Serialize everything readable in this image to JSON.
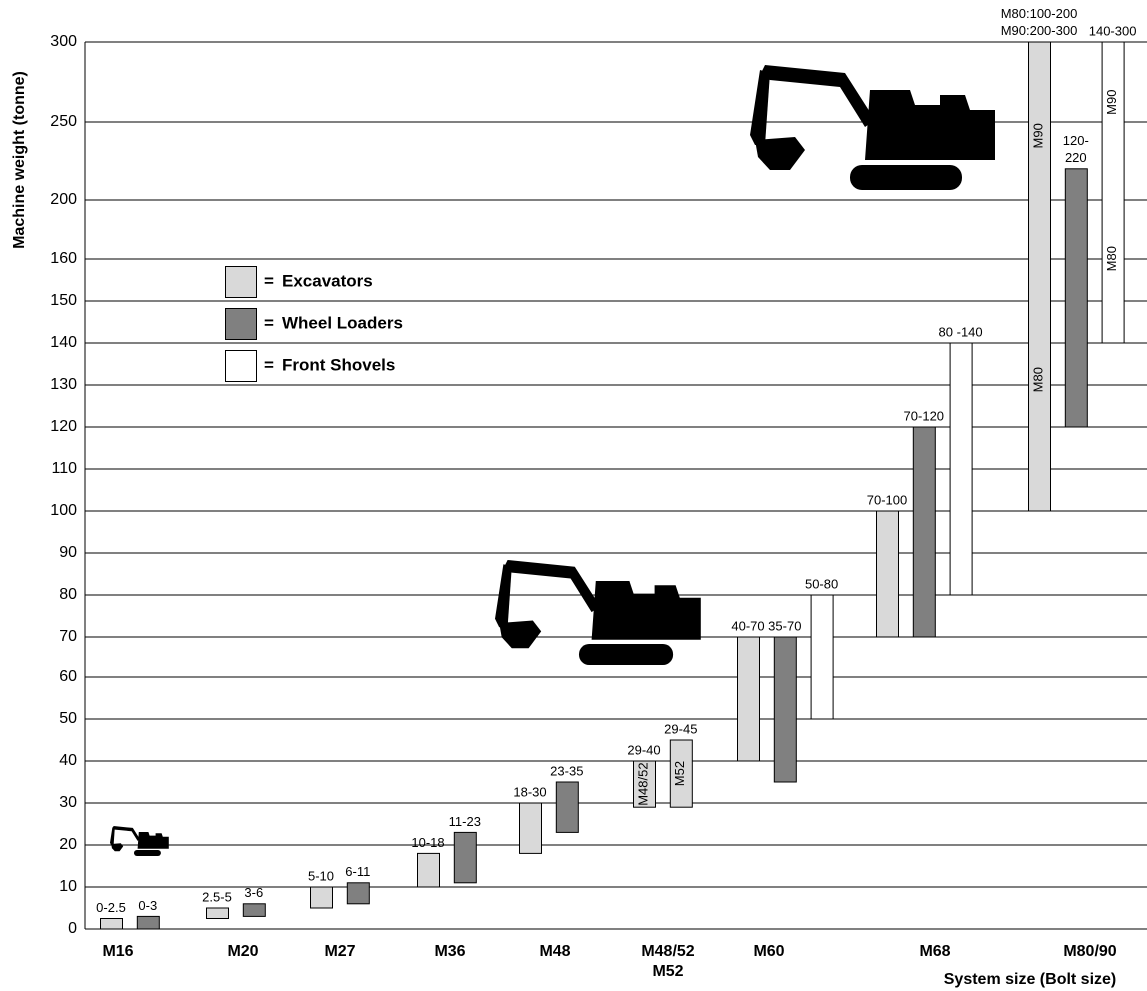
{
  "chart_data": {
    "type": "floating_bar",
    "y_label": "Machine weight (tonne)",
    "x_label": "System size (Bolt size)",
    "ylim": [
      0,
      300
    ],
    "yticks": [
      0,
      10,
      20,
      30,
      40,
      50,
      60,
      70,
      80,
      90,
      100,
      110,
      120,
      130,
      140,
      150,
      160,
      200,
      250,
      300
    ],
    "grid": true,
    "categories": [
      "M16",
      "M20",
      "M27",
      "M36",
      "M48",
      "M48/52\nM52",
      "M60",
      "M68",
      "M80/90"
    ],
    "legend_prefix": "=",
    "series": [
      {
        "name": "Excavators",
        "color": "#d9d9d9"
      },
      {
        "name": "Wheel Loaders",
        "color": "#808080"
      },
      {
        "name": "Front Shovels",
        "color": "#ffffff"
      }
    ],
    "bars": [
      {
        "series": 0,
        "category": 0,
        "low": 0,
        "high": 2.5,
        "label": "0-2.5"
      },
      {
        "series": 1,
        "category": 0,
        "low": 0,
        "high": 3,
        "label": "0-3"
      },
      {
        "series": 0,
        "category": 1,
        "low": 2.5,
        "high": 5,
        "label": "2.5-5"
      },
      {
        "series": 1,
        "category": 1,
        "low": 3,
        "high": 6,
        "label": "3-6"
      },
      {
        "series": 0,
        "category": 2,
        "low": 5,
        "high": 10,
        "label": "5-10"
      },
      {
        "series": 1,
        "category": 2,
        "low": 6,
        "high": 11,
        "label": "6-11"
      },
      {
        "series": 0,
        "category": 3,
        "low": 10,
        "high": 18,
        "label": "10-18"
      },
      {
        "series": 1,
        "category": 3,
        "low": 11,
        "high": 23,
        "label": "11-23"
      },
      {
        "series": 0,
        "category": 4,
        "low": 18,
        "high": 30,
        "label": "18-30"
      },
      {
        "series": 1,
        "category": 4,
        "low": 23,
        "high": 35,
        "label": "23-35"
      },
      {
        "series": 0,
        "category": 5,
        "low": 29,
        "high": 40,
        "label": "29-40",
        "inner_labels": [
          "M48/52"
        ]
      },
      {
        "series": 0,
        "category": 5,
        "low": 29,
        "high": 45,
        "label": "29-45",
        "inner_labels": [
          "M52"
        ]
      },
      {
        "series": 0,
        "category": 6,
        "low": 40,
        "high": 70,
        "label": "40-70"
      },
      {
        "series": 1,
        "category": 6,
        "low": 35,
        "high": 70,
        "label": "35-70"
      },
      {
        "series": 2,
        "category": 6,
        "low": 50,
        "high": 80,
        "label": "50-80"
      },
      {
        "series": 0,
        "category": 7,
        "low": 70,
        "high": 100,
        "label": "70-100"
      },
      {
        "series": 1,
        "category": 7,
        "low": 70,
        "high": 120,
        "label": "70-120"
      },
      {
        "series": 2,
        "category": 7,
        "low": 80,
        "high": 140,
        "label": "80 -140"
      },
      {
        "series": 0,
        "category": 8,
        "low": 100,
        "high": 300,
        "label": "M80:100-200\nM90:200-300",
        "inner_labels": [
          "M90",
          "M80"
        ]
      },
      {
        "series": 1,
        "category": 8,
        "low": 120,
        "high": 220,
        "label": "120-\n220"
      },
      {
        "series": 2,
        "category": 8,
        "low": 140,
        "high": 300,
        "label": "140-300",
        "inner_labels": [
          "M90",
          "M80"
        ]
      }
    ]
  }
}
